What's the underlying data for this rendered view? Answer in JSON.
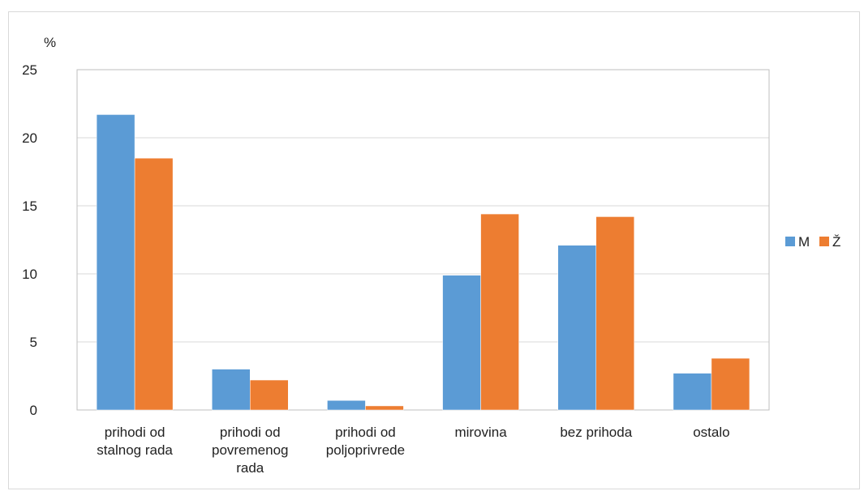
{
  "chart_data": {
    "type": "bar",
    "title": "",
    "ylabel": "%",
    "xlabel": "",
    "ylim": [
      0,
      25
    ],
    "yticks": [
      0,
      5,
      10,
      15,
      20,
      25
    ],
    "grid": true,
    "legend_position": "right",
    "categories": [
      [
        "prihodi od",
        "stalnog rada"
      ],
      [
        "prihodi od",
        "povremenog",
        "rada"
      ],
      [
        "prihodi od",
        "poljoprivrede"
      ],
      [
        "mirovina"
      ],
      [
        "bez prihoda"
      ],
      [
        "ostalo"
      ]
    ],
    "series": [
      {
        "name": "M",
        "color": "#5b9bd5",
        "values": [
          21.7,
          3.0,
          0.7,
          9.9,
          12.1,
          2.7
        ]
      },
      {
        "name": "Ž",
        "color": "#ed7d31",
        "values": [
          18.5,
          2.2,
          0.3,
          14.4,
          14.2,
          3.8
        ]
      }
    ]
  }
}
